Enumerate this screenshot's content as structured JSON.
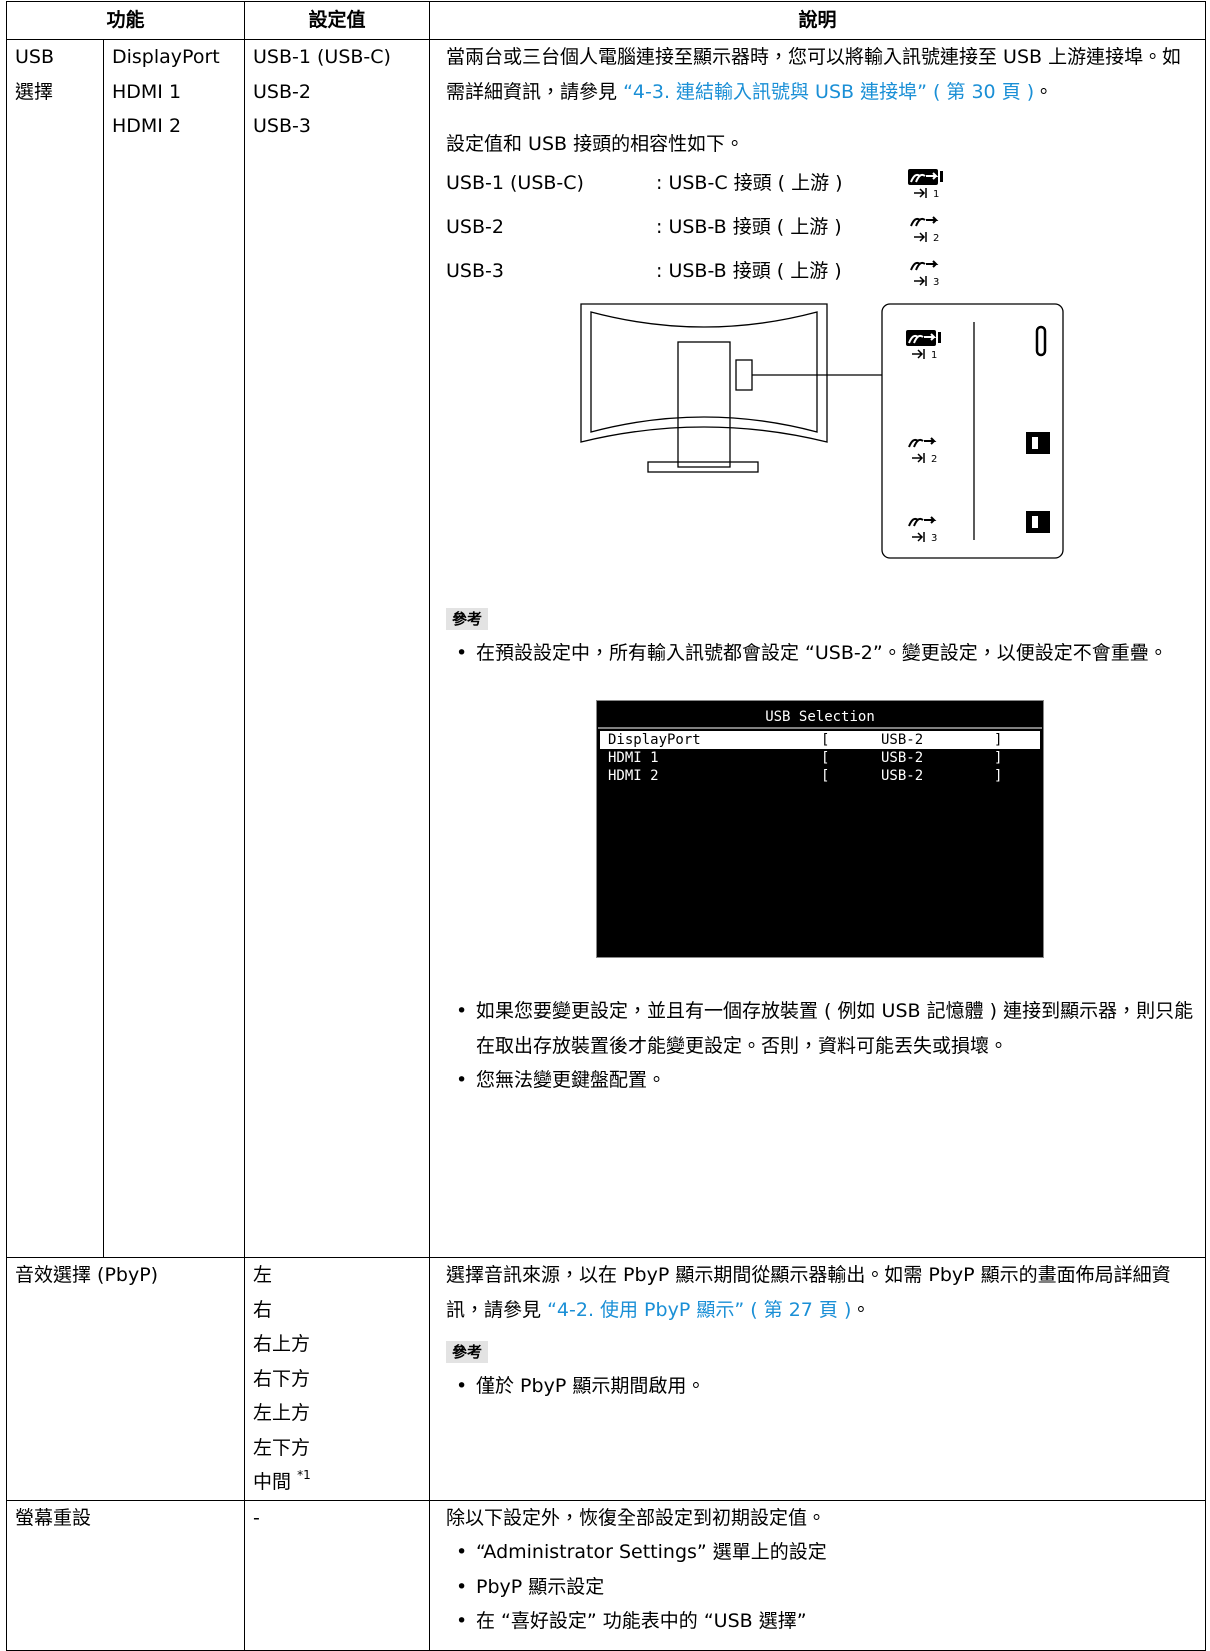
{
  "table": {
    "headers": [
      "功能",
      "設定值",
      "說明"
    ],
    "rows": [
      {
        "function": [
          "USB",
          "選擇"
        ],
        "inputs": [
          "DisplayPort",
          "HDMI 1",
          "HDMI 2"
        ],
        "settings": [
          "USB-1 (USB-C)",
          "USB-2",
          "USB-3"
        ],
        "description": {
          "text": "當兩台或三台個人電腦連接至顯示器時，您可以將輸入訊號連接至 USB 上游連接埠。如需詳細資訊，請參見 ",
          "link": "“4-3. 連結輸入訊號與 USB 連接埠” ( 第 30 頁 )",
          "end": "。"
        },
        "compat_intro": "設定值和 USB 接頭的相容性如下。",
        "compat": [
          {
            "setting": "USB-1 (USB-C)",
            "connector": ": USB-C 接頭 ( 上游 )",
            "port": "1"
          },
          {
            "setting": "USB-2",
            "connector": ": USB-B 接頭 ( 上游 )",
            "port": "2"
          },
          {
            "setting": "USB-3",
            "connector": ": USB-B 接頭 ( 上游 )",
            "port": "3"
          }
        ],
        "note_label": "參考",
        "notes_before": [
          "在預設設定中，所有輸入訊號都會設定 “USB-2”。變更設定，以便設定不會重疊。"
        ],
        "osd": {
          "title": "USB Selection",
          "open": "[",
          "close": "]",
          "rows": [
            {
              "input": "DisplayPort",
              "value": "USB-2"
            },
            {
              "input": "HDMI 1",
              "value": "USB-2"
            },
            {
              "input": "HDMI 2",
              "value": "USB-2"
            }
          ]
        },
        "notes_after": [
          "如果您要變更設定，並且有一個存放裝置 ( 例如 USB 記憶體 ) 連接到顯示器，則只能在取出存放裝置後才能變更設定。否則，資料可能丟失或損壞。",
          "您無法變更鍵盤配置。"
        ]
      },
      {
        "function": "音效選擇 (PbyP)",
        "settings": [
          "左",
          "右",
          "右上方",
          "右下方",
          "左上方",
          "左下方",
          "中間"
        ],
        "settings_note": "*1",
        "description": {
          "text": "選擇音訊來源，以在 PbyP 顯示期間從顯示器輸出。如需 PbyP 顯示的畫面佈局詳細資訊，請參見 ",
          "link": "“4-2. 使用 PbyP 顯示” ( 第 27 頁 )",
          "end": "。"
        },
        "note_label": "參考",
        "notes": [
          "僅於 PbyP 顯示期間啟用。"
        ]
      },
      {
        "function": "螢幕重設",
        "settings": [
          "-"
        ],
        "description": "除以下設定外，恢復全部設定到初期設定值。",
        "bullets": [
          "“Administrator Settings” 選單上的設定",
          "PbyP 顯示設定",
          "在 “喜好設定” 功能表中的 “USB 選擇”"
        ]
      }
    ]
  }
}
